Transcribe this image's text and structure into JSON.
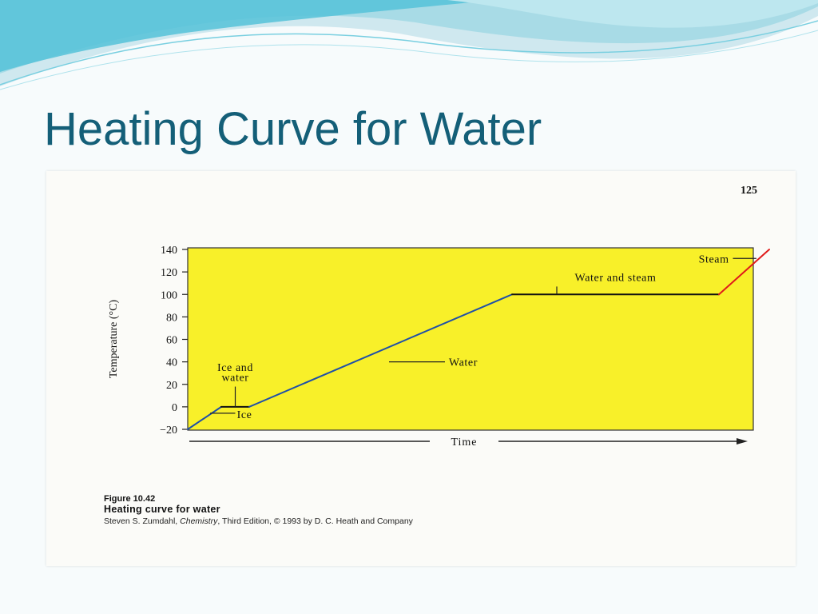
{
  "slide": {
    "title": "Heating Curve for Water"
  },
  "page": {
    "number": "125"
  },
  "chart_data": {
    "type": "line",
    "title": "",
    "xlabel": "Time",
    "ylabel": "Temperature (°C)",
    "ylim": [
      -20,
      140
    ],
    "yticks": [
      140,
      120,
      100,
      80,
      60,
      40,
      20,
      0,
      -20
    ],
    "ytick_labels": [
      "140",
      "120",
      "100",
      "80",
      "60",
      "40",
      "20",
      "0",
      "−20"
    ],
    "background": "#f8f029",
    "grid": false,
    "series": [
      {
        "x": [
          0,
          6
        ],
        "y": [
          -20,
          0
        ],
        "color": "#1e4fa8"
      },
      {
        "x": [
          6,
          11
        ],
        "y": [
          0,
          0
        ],
        "color": "#111111"
      },
      {
        "x": [
          11,
          58
        ],
        "y": [
          0,
          100
        ],
        "color": "#1e4fa8"
      },
      {
        "x": [
          58,
          95
        ],
        "y": [
          100,
          100
        ],
        "color": "#111111"
      },
      {
        "x": [
          95,
          104
        ],
        "y": [
          100,
          140
        ],
        "color": "#e01a1a"
      }
    ],
    "annotations": [
      {
        "text": "Ice",
        "x": 4,
        "y": -10
      },
      {
        "text": "Ice and",
        "x": 8.5,
        "y": 32
      },
      {
        "text": "water",
        "x": 8.5,
        "y": 23
      },
      {
        "text": "Water",
        "x": 35,
        "y": 50
      },
      {
        "text": "Water and steam",
        "x": 76.5,
        "y": 112
      },
      {
        "text": "Steam",
        "x": 100,
        "y": 130
      }
    ]
  },
  "caption": {
    "figure_number": "Figure 10.42",
    "title": "Heating curve for water",
    "credit_author": "Steven S. Zumdahl,",
    "credit_book": "Chemistry",
    "credit_rest": ", Third Edition, © 1993 by D. C. Heath and Company"
  }
}
